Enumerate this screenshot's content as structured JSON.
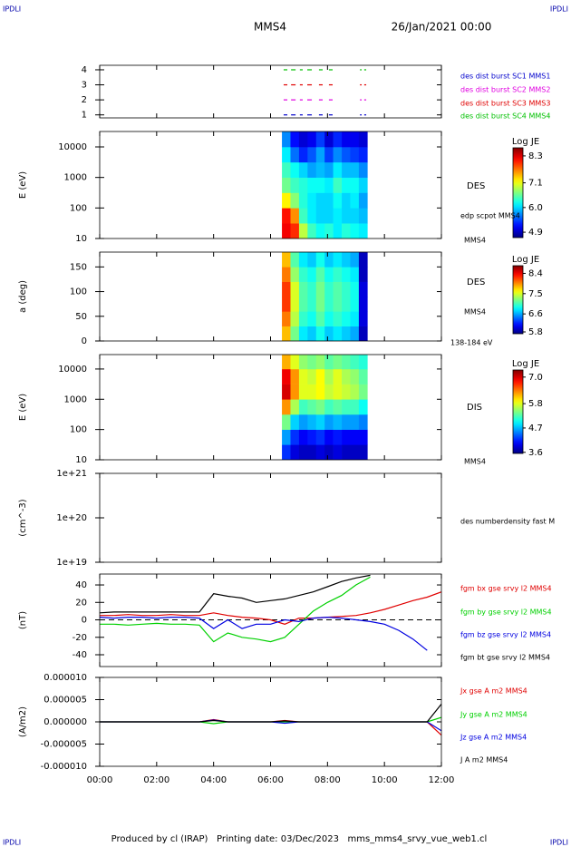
{
  "page": {
    "corners": [
      "IPDLI",
      "IPDLI",
      "IPDLI",
      "IPDLI"
    ],
    "spacecraft": "MMS4",
    "date": "26/Jan/2021 00:00",
    "footer": "Produced by cl (IRAP)   Printing date: 03/Dec/2023   mms_mms4_srvy_vue_web1.cl"
  },
  "chart_data": [
    {
      "type": "segments",
      "xlim": [
        0,
        12
      ],
      "ylim": [
        0.8,
        4.3
      ],
      "yticks": [
        1,
        2,
        3,
        4
      ],
      "starts": [
        6.46,
        6.72,
        7.03,
        7.29,
        7.7,
        8.05,
        9.14,
        9.29
      ],
      "ends": [
        6.59,
        6.88,
        7.13,
        7.45,
        7.83,
        8.18,
        9.2,
        9.36
      ],
      "series": [
        {
          "name": "des dist burst SC1 MMS1",
          "color": "#0000cc",
          "level": 1
        },
        {
          "name": "des dist burst SC2 MMS2",
          "color": "#e000e0",
          "level": 2
        },
        {
          "name": "des dist burst SC3 MMS3",
          "color": "#e00000",
          "level": 3
        },
        {
          "name": "des dist burst SC4 MMS4",
          "color": "#00c000",
          "level": 4
        }
      ]
    },
    {
      "type": "heatmap",
      "ylabel": "E (eV)",
      "log_y": true,
      "xlim": [
        0,
        12
      ],
      "ylim": [
        10,
        32000
      ],
      "yticks": [
        10,
        100,
        1000,
        10000
      ],
      "x_edges": [
        6.4,
        6.7,
        7.0,
        7.3,
        7.6,
        7.9,
        8.2,
        8.5,
        8.8,
        9.1,
        9.4
      ],
      "y_edges": [
        10,
        31.6,
        100,
        316,
        1000,
        3160,
        10000,
        32000
      ],
      "z": [
        [
          8.2,
          8.0,
          6.9,
          6.4,
          6.2,
          6.3,
          6.1,
          6.3,
          6.2,
          6.1
        ],
        [
          8.1,
          7.6,
          6.4,
          6.1,
          6.0,
          6.0,
          6.1,
          6.0,
          6.0,
          5.9
        ],
        [
          7.2,
          6.7,
          6.3,
          6.1,
          6.0,
          6.0,
          6.2,
          6.0,
          6.1,
          5.8
        ],
        [
          6.6,
          6.4,
          6.3,
          6.2,
          6.2,
          6.1,
          6.4,
          6.2,
          6.2,
          6.0
        ],
        [
          6.4,
          6.2,
          6.0,
          5.8,
          5.9,
          5.8,
          6.1,
          5.9,
          5.9,
          5.7
        ],
        [
          6.1,
          5.6,
          5.3,
          5.5,
          5.8,
          5.4,
          5.7,
          5.5,
          5.4,
          5.3
        ],
        [
          5.7,
          5.2,
          5.0,
          5.1,
          5.4,
          5.0,
          5.3,
          5.1,
          5.1,
          5.0
        ]
      ],
      "zlim": [
        4.66,
        8.66
      ],
      "zticks": [
        8.3,
        7.1,
        {
          "value": 6,
          "label": "6.0"
        },
        4.9
      ],
      "colorbar_title": "Log JE",
      "annotations": [
        "DES",
        "edp scpot MMS4",
        "MMS4"
      ]
    },
    {
      "type": "heatmap",
      "ylabel": "a (deg)",
      "log_y": false,
      "xlim": [
        0,
        12
      ],
      "ylim": [
        0,
        180
      ],
      "yticks": [
        0,
        50,
        100,
        150
      ],
      "x_edges": [
        6.4,
        6.7,
        7.0,
        7.3,
        7.6,
        7.9,
        8.2,
        8.5,
        8.8,
        9.1,
        9.4
      ],
      "y_edges": [
        0,
        30,
        60,
        90,
        120,
        150,
        180
      ],
      "z": [
        [
          7.8,
          7.2,
          6.8,
          6.7,
          6.9,
          6.7,
          6.8,
          6.7,
          6.6,
          5.9
        ],
        [
          8.0,
          7.4,
          7.0,
          6.9,
          7.1,
          6.9,
          7.0,
          6.9,
          6.8,
          6.0
        ],
        [
          8.2,
          7.5,
          7.1,
          7.0,
          7.2,
          7.0,
          7.1,
          7.0,
          6.9,
          6.0
        ],
        [
          8.2,
          7.5,
          7.1,
          7.0,
          7.2,
          7.0,
          7.1,
          7.0,
          6.9,
          6.0
        ],
        [
          8.0,
          7.3,
          7.0,
          6.9,
          7.1,
          6.9,
          7.0,
          6.9,
          6.8,
          5.9
        ],
        [
          7.8,
          7.1,
          6.8,
          6.7,
          6.9,
          6.7,
          6.8,
          6.7,
          6.6,
          5.9
        ]
      ],
      "zlim": [
        5.72,
        8.74
      ],
      "zticks": [
        8.4,
        7.5,
        6.6,
        5.8
      ],
      "colorbar_title": "Log JE",
      "annotations": [
        "DES",
        "MMS4",
        "138-184 eV"
      ]
    },
    {
      "type": "heatmap",
      "ylabel": "E (eV)",
      "log_y": true,
      "xlim": [
        0,
        12
      ],
      "ylim": [
        10,
        30000
      ],
      "yticks": [
        10,
        100,
        1000,
        10000
      ],
      "x_edges": [
        6.4,
        6.7,
        7.0,
        7.3,
        7.6,
        7.9,
        8.2,
        8.5,
        8.8,
        9.1,
        9.4
      ],
      "y_edges": [
        10,
        31.6,
        100,
        316,
        1000,
        3160,
        10000,
        30000
      ],
      "z": [
        [
          4.2,
          3.9,
          3.8,
          3.8,
          3.9,
          3.8,
          3.9,
          3.8,
          3.8,
          3.8
        ],
        [
          4.6,
          4.2,
          4.0,
          4.1,
          4.2,
          4.0,
          4.1,
          4.0,
          4.0,
          4.0
        ],
        [
          5.4,
          4.8,
          4.6,
          4.7,
          4.8,
          4.6,
          4.7,
          4.6,
          4.6,
          4.5
        ],
        [
          6.3,
          5.6,
          5.2,
          5.3,
          5.4,
          5.2,
          5.3,
          5.2,
          5.2,
          5.0
        ],
        [
          7.0,
          6.3,
          5.8,
          5.8,
          5.9,
          5.7,
          5.8,
          5.7,
          5.6,
          5.4
        ],
        [
          6.9,
          6.3,
          5.8,
          5.7,
          5.9,
          5.6,
          5.8,
          5.6,
          5.5,
          5.3
        ],
        [
          6.2,
          5.8,
          5.5,
          5.4,
          5.5,
          5.3,
          5.4,
          5.3,
          5.2,
          5.1
        ]
      ],
      "zlim": [
        3.55,
        7.32
      ],
      "zticks": [
        {
          "value": 7,
          "label": "7.0"
        },
        5.8,
        4.7,
        3.6
      ],
      "colorbar_title": "Log JE",
      "annotations": [
        "DIS",
        "MMS4"
      ]
    },
    {
      "type": "empty",
      "ylabel": "(cm^-3)",
      "log_y": true,
      "xlim": [
        0,
        12
      ],
      "ylim": [
        1e+19,
        1e+21
      ],
      "yticks": [
        {
          "value": 1e+19,
          "label": "1e+19"
        },
        {
          "value": 1e+20,
          "label": "1e+20"
        },
        {
          "value": 1e+21,
          "label": "1e+21"
        }
      ],
      "annotations": [
        "des numberdensity fast M"
      ]
    },
    {
      "type": "line",
      "ylabel": "(nT)",
      "zero_line": true,
      "xlim": [
        0,
        12
      ],
      "ylim": [
        -53.5,
        52.5
      ],
      "yticks": [
        -40,
        -20,
        0,
        20,
        40
      ],
      "x": [
        0,
        0.5,
        1,
        1.5,
        2,
        2.5,
        3,
        3.5,
        4,
        4.5,
        5,
        5.5,
        6,
        6.5,
        7,
        7.5,
        8,
        8.5,
        9,
        9.5,
        10,
        10.5,
        11,
        11.5,
        12
      ],
      "series": [
        {
          "name": "fgm bx gse srvy l2 MMS4",
          "color": "#e00000",
          "values": [
            5,
            5,
            6,
            5,
            5,
            6,
            5,
            5,
            8,
            5,
            3,
            2,
            0,
            -5,
            2,
            2,
            3,
            4,
            5,
            8,
            12,
            17,
            22,
            26,
            32
          ]
        },
        {
          "name": "fgm by gse srvy l2 MMS4",
          "color": "#00d000",
          "values": [
            -5,
            -5,
            -6,
            -5,
            -4,
            -5,
            -5,
            -6,
            -25,
            -15,
            -20,
            -22,
            -25,
            -20,
            -5,
            10,
            20,
            28,
            40,
            49,
            null,
            null,
            null,
            null,
            null
          ]
        },
        {
          "name": "fgm bz gse srvy l2 MMS4",
          "color": "#0000e0",
          "values": [
            3,
            2,
            3,
            3,
            2,
            3,
            3,
            2,
            -10,
            0,
            -10,
            -5,
            -5,
            0,
            -2,
            2,
            3,
            2,
            0,
            -2,
            -5,
            -12,
            -22,
            -35,
            null
          ]
        },
        {
          "name": "fgm bt gse srvy l2 MMS4",
          "color": "#000000",
          "values": [
            8,
            9,
            9,
            9,
            9,
            9,
            9,
            9,
            30,
            27,
            25,
            20,
            22,
            24,
            28,
            32,
            38,
            44,
            48,
            51,
            null,
            null,
            null,
            null,
            null
          ]
        }
      ]
    },
    {
      "type": "line",
      "ylabel": "(A/m2)",
      "xlim": [
        0,
        12
      ],
      "ylim": [
        -1e-05,
        1e-05
      ],
      "yticks": [
        {
          "value": -1e-05,
          "label": "-0.000010"
        },
        {
          "value": -5e-06,
          "label": "-0.000005"
        },
        {
          "value": 0,
          "label": "0.000000"
        },
        {
          "value": 5e-06,
          "label": "0.000005"
        },
        {
          "value": 1e-05,
          "label": "0.000010"
        }
      ],
      "xticks": [
        {
          "value": 0,
          "label": "00:00"
        },
        {
          "value": 2,
          "label": "02:00"
        },
        {
          "value": 4,
          "label": "04:00"
        },
        {
          "value": 6,
          "label": "06:00"
        },
        {
          "value": 8,
          "label": "08:00"
        },
        {
          "value": 10,
          "label": "10:00"
        },
        {
          "value": 12,
          "label": "12:00"
        }
      ],
      "x": [
        0,
        0.5,
        1,
        1.5,
        2,
        2.5,
        3,
        3.5,
        4,
        4.5,
        5,
        5.5,
        6,
        6.5,
        7,
        7.5,
        8,
        8.5,
        9,
        9.5,
        10,
        10.5,
        11,
        11.5,
        12
      ],
      "series": [
        {
          "name": "Jx gse A m2 MMS4",
          "color": "#e00000",
          "values": [
            0,
            0,
            0,
            0,
            0,
            0,
            0,
            0,
            5e-07,
            0,
            0,
            0,
            0,
            3e-07,
            0,
            0,
            0,
            0,
            0,
            0,
            0,
            0,
            0,
            0,
            -3e-06
          ]
        },
        {
          "name": "Jy gse A m2 MMS4",
          "color": "#00d000",
          "values": [
            0,
            0,
            0,
            0,
            0,
            0,
            0,
            0,
            -4e-07,
            0,
            0,
            0,
            0,
            0,
            0,
            0,
            0,
            0,
            0,
            0,
            0,
            0,
            0,
            0,
            1e-06
          ]
        },
        {
          "name": "Jz gse A m2 MMS4",
          "color": "#0000e0",
          "values": [
            0,
            0,
            0,
            0,
            0,
            0,
            0,
            0,
            4e-07,
            0,
            0,
            0,
            0,
            -3e-07,
            0,
            0,
            0,
            0,
            0,
            0,
            0,
            0,
            0,
            0,
            -2e-06
          ]
        },
        {
          "name": "J A m2 MMS4",
          "color": "#000000",
          "values": [
            0,
            0,
            0,
            0,
            0,
            0,
            0,
            0,
            3e-07,
            0,
            0,
            0,
            0,
            2e-07,
            0,
            0,
            0,
            0,
            0,
            0,
            0,
            0,
            0,
            0,
            4e-06
          ]
        }
      ]
    }
  ]
}
